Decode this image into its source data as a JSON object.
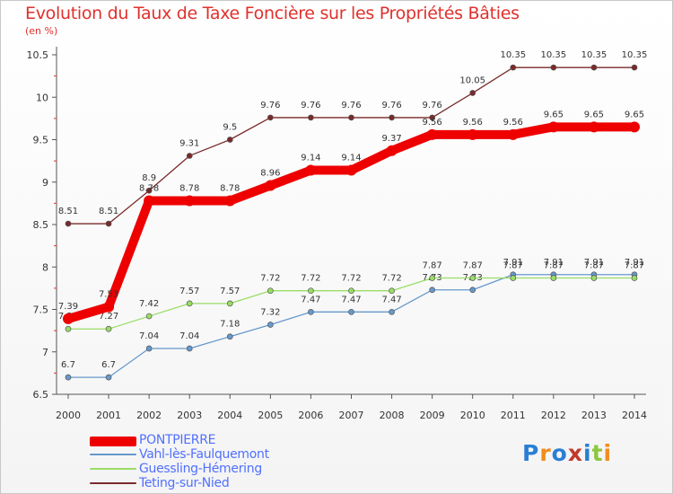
{
  "chart_data": {
    "type": "line",
    "title": "Evolution du Taux de Taxe Foncière sur les Propriétés Bâties",
    "subtitle": "(en %)",
    "x": [
      2000,
      2001,
      2002,
      2003,
      2004,
      2005,
      2006,
      2007,
      2008,
      2009,
      2010,
      2011,
      2012,
      2013,
      2014
    ],
    "x_tick_labels": [
      "2000",
      "2001",
      "2002",
      "2003",
      "2004",
      "2005",
      "2006",
      "2007",
      "2008",
      "2009",
      "2010",
      "2011",
      "2012",
      "2013",
      "2014"
    ],
    "ylim": [
      6.5,
      10.5
    ],
    "y_ticks": [
      6.5,
      7,
      7.5,
      8,
      8.5,
      9,
      9.5,
      10,
      10.5
    ],
    "y_tick_labels": [
      "6.5",
      "7",
      "7.5",
      "8",
      "8.5",
      "9",
      "9.5",
      "10",
      "10.5"
    ],
    "grid": false,
    "legend_position": "bottom-left",
    "series": [
      {
        "name": "Teting-sur-Nied",
        "color": "#7a2a2a",
        "values": [
          8.51,
          8.51,
          8.9,
          9.31,
          9.5,
          9.76,
          9.76,
          9.76,
          9.76,
          9.76,
          10.05,
          10.35,
          10.35,
          10.35,
          10.35
        ],
        "labels": [
          "8.51",
          "8.51",
          "8.9",
          "9.31",
          "9.5",
          "9.76",
          "9.76",
          "9.76",
          "9.76",
          "9.76",
          "10.05",
          "10.35",
          "10.35",
          "10.35",
          "10.35"
        ]
      },
      {
        "name": "Vahl-lès-Faulquemont",
        "color": "#6699cc",
        "values": [
          6.7,
          6.7,
          7.04,
          7.04,
          7.18,
          7.32,
          7.47,
          7.47,
          7.47,
          7.73,
          7.73,
          7.91,
          7.91,
          7.91,
          7.91
        ],
        "labels": [
          "6.7",
          "6.7",
          "7.04",
          "7.04",
          "7.18",
          "7.32",
          "7.47",
          "7.47",
          "7.47",
          "7.73",
          "7.73",
          "7.91",
          "7.91",
          "7.91",
          "7.91"
        ]
      },
      {
        "name": "Guessling-Hémering",
        "color": "#99dd66",
        "values": [
          7.27,
          7.27,
          7.42,
          7.57,
          7.57,
          7.72,
          7.72,
          7.72,
          7.72,
          7.87,
          7.87,
          7.87,
          7.87,
          7.87,
          7.87
        ],
        "labels": [
          "7.27",
          "7.27",
          "7.42",
          "7.57",
          "7.57",
          "7.72",
          "7.72",
          "7.72",
          "7.72",
          "7.87",
          "7.87",
          "7.87",
          "7.87",
          "7.87",
          "7.87"
        ]
      },
      {
        "name": "PONTPIERRE",
        "color": "#ee0000",
        "values": [
          7.39,
          7.53,
          8.78,
          8.78,
          8.78,
          8.96,
          9.14,
          9.14,
          9.37,
          9.56,
          9.56,
          9.56,
          9.65,
          9.65,
          9.65
        ],
        "labels": [
          "7.39",
          "7.53",
          "8.78",
          "8.78",
          "8.78",
          "8.96",
          "9.14",
          "9.14",
          "9.37",
          "9.56",
          "9.56",
          "9.56",
          "9.65",
          "9.65",
          "9.65"
        ]
      }
    ]
  },
  "legend": {
    "items": [
      {
        "label": "PONTPIERRE",
        "color": "#ee0000"
      },
      {
        "label": "Vahl-lès-Faulquemont",
        "color": "#6699cc"
      },
      {
        "label": "Guessling-Hémering",
        "color": "#99dd66"
      },
      {
        "label": "Teting-sur-Nied",
        "color": "#7a2a2a"
      }
    ]
  },
  "logo": {
    "text": "Proxiti",
    "letters": [
      {
        "ch": "P",
        "color": "#2a7fd4"
      },
      {
        "ch": "r",
        "color": "#f28c1e"
      },
      {
        "ch": "o",
        "color": "#2a7fd4"
      },
      {
        "ch": "x",
        "color": "#c0392b"
      },
      {
        "ch": "i",
        "color": "#2a7fd4"
      },
      {
        "ch": "t",
        "color": "#8dc63f"
      },
      {
        "ch": "i",
        "color": "#f28c1e"
      }
    ]
  },
  "colors": {
    "title": "#e0302c",
    "axis": "#555555",
    "tick_mark": "#e0302c",
    "legend_text": "#5070ff"
  }
}
